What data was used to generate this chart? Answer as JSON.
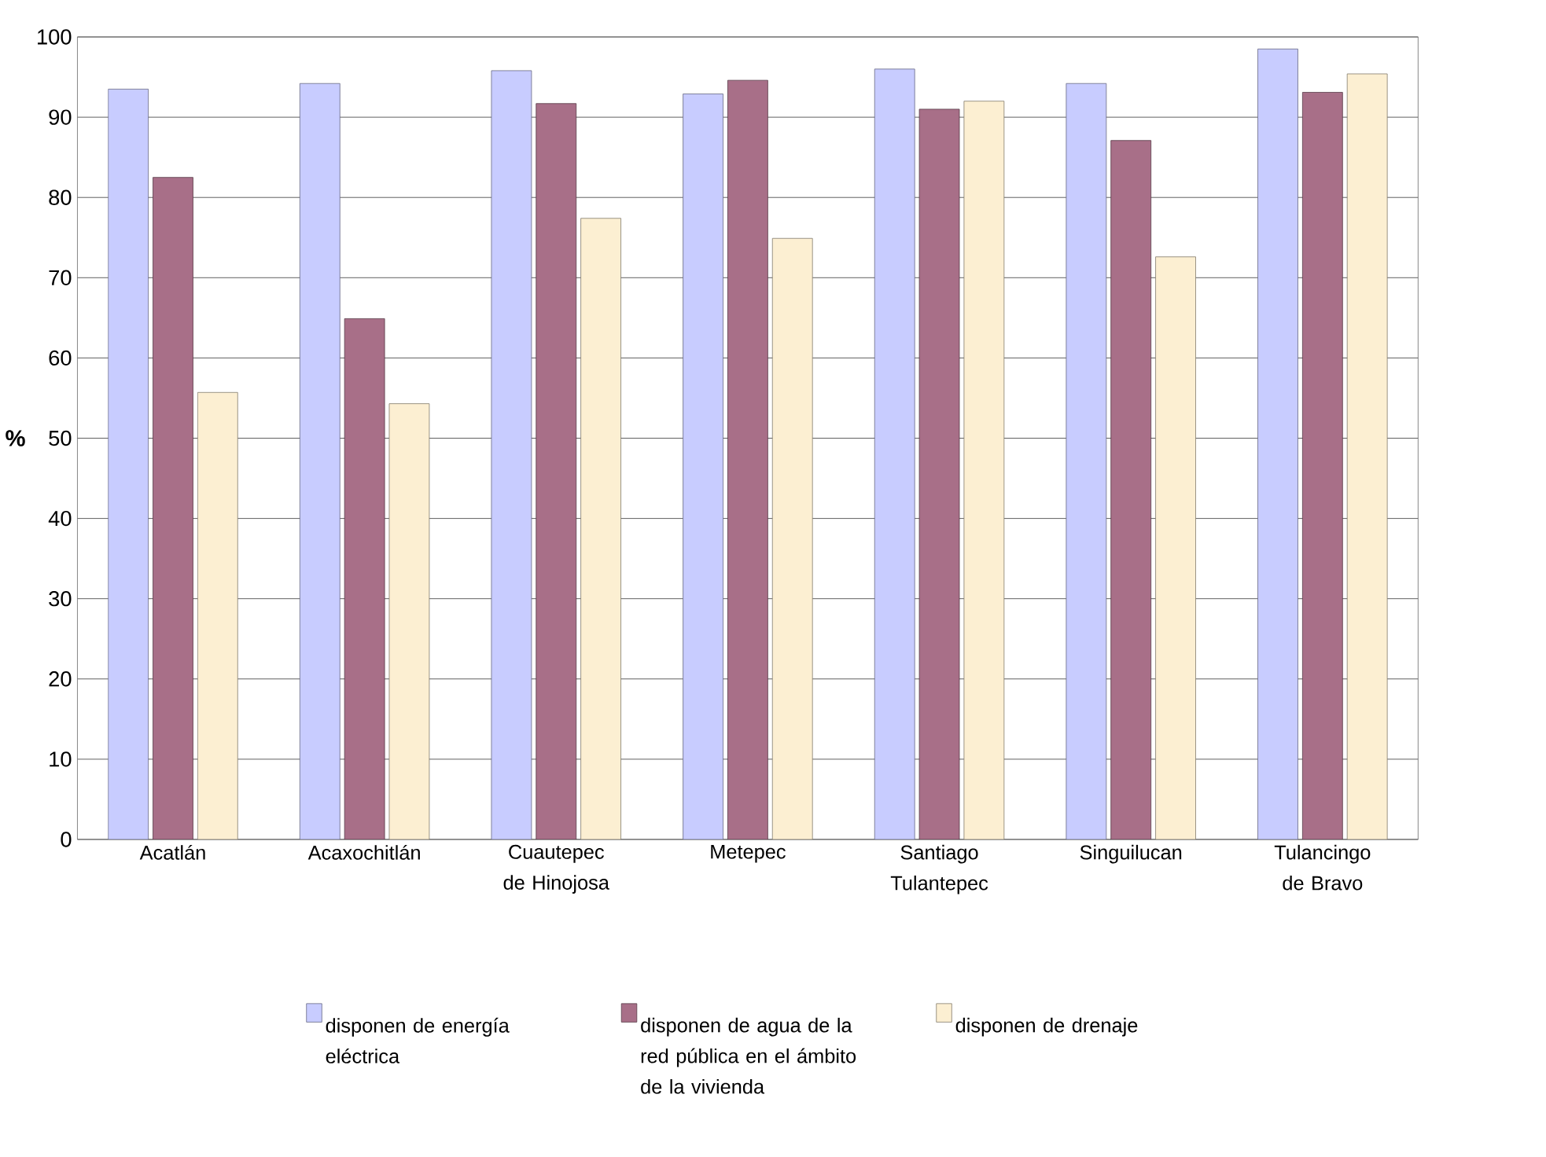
{
  "chart_data": {
    "type": "bar",
    "ylabel": "%",
    "categories": [
      "Acatlán",
      "Acaxochitlán",
      "Cuautepec de Hinojosa",
      "Metepec",
      "Santiago Tulantepec",
      "Singuilucan",
      "Tulancingo de Bravo"
    ],
    "series": [
      {
        "name": "disponen de energía eléctrica",
        "color": "#c8ccff",
        "values": [
          93.5,
          94.2,
          95.8,
          92.9,
          96,
          94.2,
          98.5
        ]
      },
      {
        "name": "disponen de agua de la red pública en el ámbito de la vivienda",
        "color": "#a86f88",
        "values": [
          82.5,
          64.9,
          91.7,
          94.6,
          91,
          87.1,
          93.1
        ]
      },
      {
        "name": "disponen de drenaje",
        "color": "#fcefd2",
        "values": [
          55.7,
          54.3,
          77.4,
          74.9,
          92,
          72.6,
          95.4
        ]
      }
    ],
    "ylim": [
      0,
      100
    ],
    "yticks": [
      0,
      10,
      20,
      30,
      40,
      50,
      60,
      70,
      80,
      90,
      100
    ],
    "grid": "y",
    "legend": "bottom"
  }
}
